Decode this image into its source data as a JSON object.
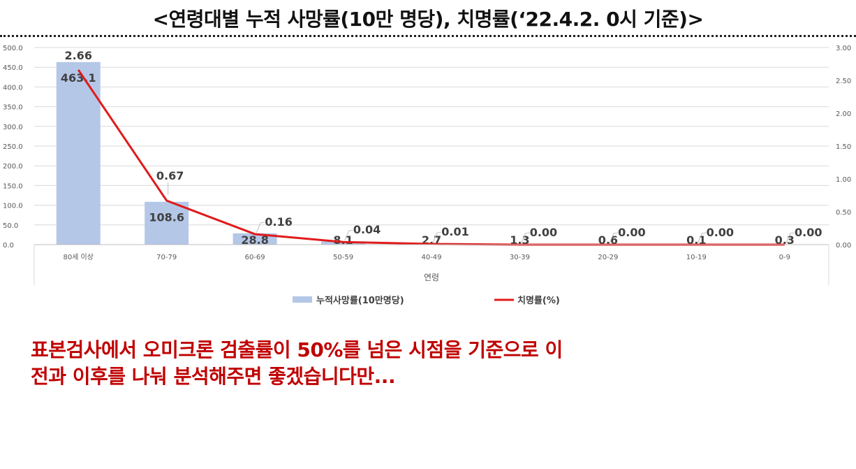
{
  "title": "<연령대별 누적 사망률(10만 명당), 치명률(‘22.4.2. 0시 기준)>",
  "colors": {
    "bar": "#b4c7e7",
    "line": "#e01b1b",
    "comment": "#c00000"
  },
  "chart_data": {
    "type": "bar",
    "categories": [
      "80세 이상",
      "70-79",
      "60-69",
      "50-59",
      "40-49",
      "30-39",
      "20-29",
      "10-19",
      "0-9"
    ],
    "xlabel": "연령",
    "series": [
      {
        "name": "누적사망률(10만명당)",
        "kind": "bar",
        "axis": "left",
        "values": [
          463.1,
          108.6,
          28.8,
          8.1,
          2.7,
          1.3,
          0.6,
          0.1,
          0.3
        ],
        "labels": [
          "463.1",
          "108.6",
          "28.8",
          "8.1",
          "2.7",
          "1.3",
          "0.6",
          "0.1",
          "0.3"
        ]
      },
      {
        "name": "치명률(%)",
        "kind": "line",
        "axis": "right",
        "values": [
          2.66,
          0.67,
          0.16,
          0.04,
          0.01,
          0.0,
          0.0,
          0.0,
          0.0
        ],
        "labels": [
          "2.66",
          "0.67",
          "0.16",
          "0.04",
          "0.01",
          "0.00",
          "0.00",
          "0.00",
          "0.00"
        ]
      }
    ],
    "ylim": [
      0,
      500
    ],
    "yticks": [
      "0.0",
      "50.0",
      "100.0",
      "150.0",
      "200.0",
      "250.0",
      "300.0",
      "350.0",
      "400.0",
      "450.0",
      "500.0"
    ],
    "y2lim": [
      0,
      3
    ],
    "y2ticks": [
      "0.00",
      "0.50",
      "1.00",
      "1.50",
      "2.00",
      "2.50",
      "3.00"
    ],
    "grid": true,
    "legend_position": "bottom"
  },
  "comment": {
    "line1": "표본검사에서 오미크론 검출률이 50%를 넘은 시점을 기준으로 이",
    "line2": "전과 이후를 나눠 분석해주면 좋겠습니다만..."
  }
}
